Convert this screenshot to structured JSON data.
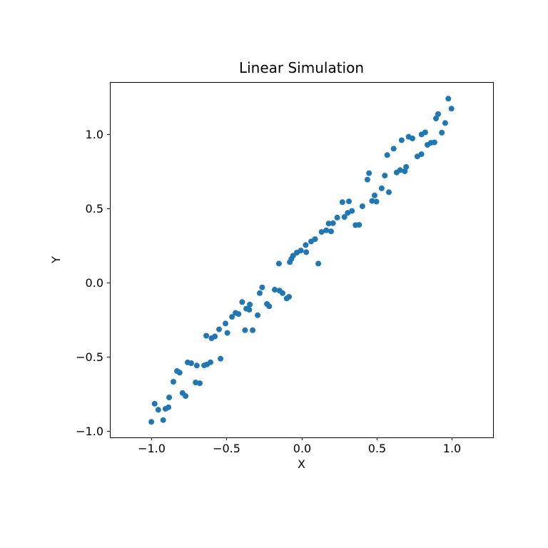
{
  "figure": {
    "background": "#ffffff"
  },
  "chart_data": {
    "type": "scatter",
    "title": "Linear Simulation",
    "xlabel": "X",
    "ylabel": "Y",
    "xlim": [
      -1.276,
      1.276
    ],
    "ylim": [
      -1.043,
      1.351
    ],
    "xticks": [
      -1.0,
      -0.5,
      0.0,
      0.5,
      1.0
    ],
    "yticks": [
      -1.0,
      -0.5,
      0.0,
      0.5,
      1.0
    ],
    "xtick_labels": [
      "−1.0",
      "−0.5",
      "0.0",
      "0.5",
      "1.0"
    ],
    "ytick_labels": [
      "−1.0",
      "−0.5",
      "0.0",
      "0.5",
      "1.0"
    ],
    "grid": false,
    "legend": null,
    "marker": {
      "color": "#1f77b4",
      "radius_px": 4
    },
    "spine_color": "#000000",
    "points": [
      [
        -1.0,
        -0.938
      ],
      [
        -0.921,
        -0.926
      ],
      [
        -0.978,
        -0.816
      ],
      [
        -0.954,
        -0.857
      ],
      [
        -0.906,
        -0.85
      ],
      [
        -0.886,
        -0.84
      ],
      [
        -0.881,
        -0.774
      ],
      [
        -0.829,
        -0.596
      ],
      [
        -0.811,
        -0.607
      ],
      [
        -0.853,
        -0.668
      ],
      [
        -0.792,
        -0.744
      ],
      [
        -0.772,
        -0.764
      ],
      [
        -0.758,
        -0.538
      ],
      [
        -0.734,
        -0.543
      ],
      [
        -0.697,
        -0.559
      ],
      [
        -0.705,
        -0.673
      ],
      [
        -0.677,
        -0.678
      ],
      [
        -0.648,
        -0.558
      ],
      [
        -0.629,
        -0.551
      ],
      [
        -0.606,
        -0.537
      ],
      [
        -0.539,
        -0.513
      ],
      [
        -0.634,
        -0.358
      ],
      [
        -0.599,
        -0.375
      ],
      [
        -0.577,
        -0.363
      ],
      [
        -0.549,
        -0.315
      ],
      [
        -0.506,
        -0.276
      ],
      [
        -0.494,
        -0.339
      ],
      [
        -0.463,
        -0.231
      ],
      [
        -0.439,
        -0.204
      ],
      [
        -0.419,
        -0.212
      ],
      [
        -0.395,
        -0.131
      ],
      [
        -0.344,
        -0.148
      ],
      [
        -0.368,
        -0.176
      ],
      [
        -0.348,
        -0.183
      ],
      [
        -0.292,
        -0.22
      ],
      [
        -0.262,
        -0.032
      ],
      [
        -0.278,
        -0.071
      ],
      [
        -0.376,
        -0.321
      ],
      [
        -0.325,
        -0.321
      ],
      [
        -0.23,
        -0.144
      ],
      [
        -0.215,
        -0.16
      ],
      [
        -0.178,
        -0.048
      ],
      [
        -0.146,
        -0.054
      ],
      [
        -0.126,
        -0.071
      ],
      [
        -0.099,
        -0.107
      ],
      [
        -0.083,
        -0.096
      ],
      [
        -0.15,
        0.128
      ],
      [
        -0.078,
        0.138
      ],
      [
        -0.067,
        0.16
      ],
      [
        -0.056,
        0.181
      ],
      [
        -0.031,
        0.202
      ],
      [
        -0.004,
        0.216
      ],
      [
        0.032,
        0.205
      ],
      [
        0.028,
        0.253
      ],
      [
        0.064,
        0.277
      ],
      [
        0.091,
        0.293
      ],
      [
        0.134,
        0.341
      ],
      [
        0.165,
        0.352
      ],
      [
        0.197,
        0.345
      ],
      [
        0.181,
        0.398
      ],
      [
        0.21,
        0.4
      ],
      [
        0.238,
        0.438
      ],
      [
        0.286,
        0.442
      ],
      [
        0.308,
        0.47
      ],
      [
        0.336,
        0.483
      ],
      [
        0.36,
        0.387
      ],
      [
        0.384,
        0.389
      ],
      [
        0.112,
        0.128
      ],
      [
        0.273,
        0.542
      ],
      [
        0.316,
        0.547
      ],
      [
        0.406,
        0.514
      ],
      [
        0.47,
        0.55
      ],
      [
        0.499,
        0.546
      ],
      [
        0.487,
        0.587
      ],
      [
        0.534,
        0.635
      ],
      [
        0.582,
        0.609
      ],
      [
        0.555,
        0.721
      ],
      [
        0.439,
        0.694
      ],
      [
        0.45,
        0.737
      ],
      [
        0.634,
        0.742
      ],
      [
        0.657,
        0.758
      ],
      [
        0.688,
        0.75
      ],
      [
        0.697,
        0.779
      ],
      [
        0.571,
        0.859
      ],
      [
        0.614,
        0.902
      ],
      [
        0.667,
        0.959
      ],
      [
        0.714,
        0.982
      ],
      [
        0.739,
        0.971
      ],
      [
        0.772,
        0.85
      ],
      [
        0.799,
        0.865
      ],
      [
        0.8,
        0.998
      ],
      [
        0.824,
        1.012
      ],
      [
        0.839,
        0.928
      ],
      [
        0.862,
        0.942
      ],
      [
        0.886,
        0.945
      ],
      [
        0.935,
        1.01
      ],
      [
        0.978,
        1.239
      ],
      [
        0.999,
        1.172
      ],
      [
        0.91,
        1.135
      ],
      [
        0.896,
        1.106
      ],
      [
        0.957,
        1.075
      ]
    ]
  }
}
